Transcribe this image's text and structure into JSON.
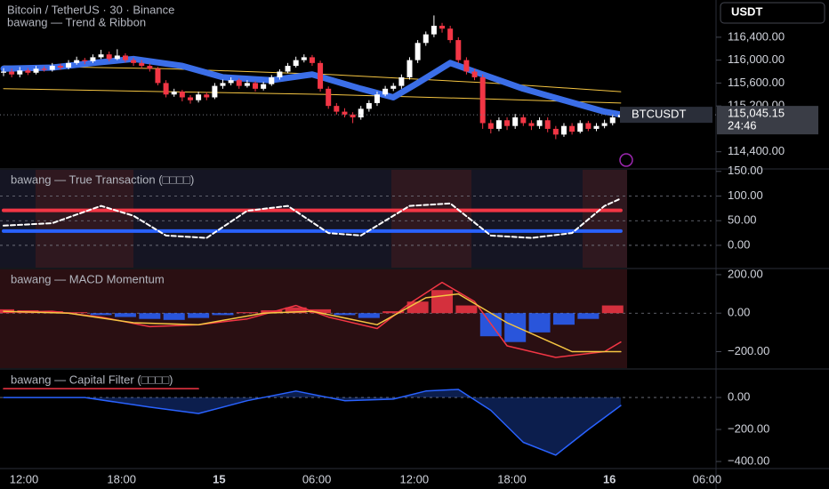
{
  "header": {
    "title": "Bitcoin / TetherUS · 30 · Binance",
    "indicator": "bawang — Trend & Ribbon"
  },
  "currency": "USDT",
  "time_axis": {
    "labels": [
      "12:00",
      "18:00",
      "15",
      "06:00",
      "12:00",
      "18:00",
      "16",
      "06:00"
    ]
  },
  "price_pane": {
    "ylim": [
      114100,
      117050
    ],
    "yticks": [
      {
        "value": 116400,
        "label": "116,400.00"
      },
      {
        "value": 116000,
        "label": "116,000.00"
      },
      {
        "value": 115600,
        "label": "115,600.00"
      },
      {
        "value": 115200,
        "label": "115,200.00"
      },
      {
        "value": 114400,
        "label": "114,400.00"
      }
    ],
    "up_color": "#ffffff",
    "down_color": "#f23645",
    "candles": {
      "open": [
        115780,
        115800,
        115750,
        115820,
        115780,
        115850,
        115830,
        115900,
        115870,
        115950,
        116000,
        115980,
        116050,
        116100,
        116020,
        116080,
        116000,
        115950,
        115900,
        115850,
        115600,
        115400,
        115450,
        115350,
        115300,
        115400,
        115350,
        115550,
        115600,
        115650,
        115550,
        115600,
        115500,
        115580,
        115700,
        115800,
        115900,
        116000,
        116050,
        115950,
        115500,
        115200,
        115100,
        115050,
        115000,
        115150,
        115250,
        115400,
        115500,
        115550,
        115700,
        116000,
        116300,
        116450,
        116600,
        116550,
        116350,
        116000,
        115800,
        115700,
        114900,
        114800,
        114950,
        114850,
        115000,
        114900,
        114850,
        114950,
        114800,
        114700,
        114850,
        114750,
        114900,
        114800,
        114850,
        114900,
        115000
      ],
      "high": [
        115860,
        115850,
        115880,
        115860,
        115900,
        115890,
        115950,
        115940,
        116000,
        116060,
        116040,
        116100,
        116180,
        116150,
        116190,
        116120,
        116040,
        116000,
        115940,
        115880,
        115650,
        115500,
        115480,
        115390,
        115450,
        115440,
        115600,
        115660,
        115700,
        115680,
        115650,
        115630,
        115620,
        115740,
        115840,
        115950,
        116060,
        116100,
        116090,
        115990,
        115540,
        115250,
        115160,
        115090,
        115200,
        115300,
        115450,
        115550,
        115600,
        115750,
        116050,
        116350,
        116500,
        116780,
        116650,
        116600,
        116400,
        116050,
        115850,
        115750,
        114960,
        115000,
        115000,
        115060,
        115050,
        114950,
        115000,
        115000,
        114850,
        114900,
        114900,
        114950,
        114940,
        114900,
        114960,
        115050,
        115120
      ],
      "low": [
        115720,
        115700,
        115700,
        115740,
        115750,
        115800,
        115800,
        115830,
        115840,
        115920,
        115930,
        115950,
        116020,
        115980,
        116000,
        115960,
        115900,
        115850,
        115800,
        115560,
        115350,
        115360,
        115280,
        115240,
        115260,
        115300,
        115320,
        115500,
        115560,
        115500,
        115520,
        115450,
        115470,
        115550,
        115660,
        115770,
        115870,
        115960,
        115900,
        115450,
        115150,
        115050,
        115000,
        114900,
        114960,
        115100,
        115200,
        115370,
        115460,
        115500,
        115660,
        115950,
        116250,
        116400,
        116480,
        116300,
        115950,
        115750,
        115650,
        114800,
        114720,
        114760,
        114780,
        114800,
        114850,
        114780,
        114800,
        114740,
        114620,
        114660,
        114700,
        114720,
        114760,
        114760,
        114810,
        114860,
        114980
      ],
      "close": [
        115800,
        115750,
        115820,
        115780,
        115850,
        115830,
        115900,
        115870,
        115950,
        116000,
        115980,
        116050,
        116100,
        116020,
        116080,
        116000,
        115950,
        115900,
        115850,
        115600,
        115400,
        115450,
        115350,
        115300,
        115400,
        115350,
        115550,
        115600,
        115650,
        115550,
        115600,
        115500,
        115580,
        115700,
        115800,
        115900,
        116000,
        116050,
        115950,
        115500,
        115200,
        115100,
        115050,
        115000,
        115150,
        115250,
        115400,
        115500,
        115550,
        115700,
        116000,
        116300,
        116450,
        116600,
        116550,
        116350,
        116000,
        115800,
        115700,
        114900,
        114800,
        114950,
        114850,
        115000,
        114900,
        114850,
        114950,
        114800,
        114700,
        114850,
        114750,
        114900,
        114800,
        114850,
        114900,
        115000,
        115045.15
      ]
    },
    "lines": [
      {
        "color": "#f5c542",
        "width": 1,
        "x": [
          0,
          20,
          40,
          60,
          76
        ],
        "values": [
          115900,
          115850,
          115750,
          115600,
          115450
        ]
      },
      {
        "color": "#f5c542",
        "width": 1,
        "x": [
          0,
          20,
          40,
          60,
          76
        ],
        "values": [
          115500,
          115450,
          115400,
          115320,
          115250
        ]
      },
      {
        "color": "#3b6ee8",
        "width": 7,
        "x": [
          0,
          6,
          11,
          16,
          22,
          27,
          33,
          38,
          44,
          48,
          51,
          55,
          58,
          64,
          69,
          74,
          76
        ],
        "values": [
          115850,
          115870,
          115950,
          116020,
          115900,
          115700,
          115650,
          115750,
          115500,
          115350,
          115600,
          115950,
          115800,
          115500,
          115300,
          115100,
          115050
        ]
      }
    ],
    "last_price": {
      "symbol": "BTCUSDT",
      "value": 115045.15,
      "label": "115,045.15",
      "countdown": "24:46"
    }
  },
  "panes": [
    {
      "title": "bawang — True Transaction (□□□□)",
      "ylim": [
        -47,
        155
      ],
      "yticks": [
        {
          "value": 150,
          "label": "150.00"
        },
        {
          "value": 100,
          "label": "100.00"
        },
        {
          "value": 50,
          "label": "50.00"
        },
        {
          "value": 0,
          "label": "0.00"
        }
      ],
      "guides": [
        100,
        50,
        0
      ],
      "lines": [
        {
          "color": "#f23645",
          "width": 4,
          "x": [
            0,
            76
          ],
          "values": [
            71,
            71
          ]
        },
        {
          "color": "#2962ff",
          "width": 4,
          "x": [
            0,
            76
          ],
          "values": [
            29,
            29
          ]
        },
        {
          "color": "#ffffff",
          "width": 2,
          "dash": true,
          "x": [
            0,
            6,
            12,
            16,
            20,
            25,
            30,
            35,
            40,
            44,
            50,
            55,
            60,
            65,
            70,
            74,
            76
          ],
          "values": [
            40,
            45,
            80,
            60,
            20,
            15,
            70,
            80,
            25,
            20,
            80,
            85,
            20,
            15,
            25,
            80,
            95
          ]
        }
      ]
    },
    {
      "title": "bawang — MACD Momentum",
      "ylim": [
        -290,
        232
      ],
      "yticks": [
        {
          "value": 200,
          "label": "200.00"
        },
        {
          "value": 0,
          "label": "0.00"
        },
        {
          "value": -200,
          "label": "−200.00"
        }
      ],
      "guides": [
        0
      ],
      "histogram": {
        "up_color": "#f23645",
        "down_color": "#2962ff",
        "x": [
          0,
          3,
          6,
          9,
          12,
          15,
          18,
          21,
          24,
          27,
          30,
          33,
          36,
          39,
          42,
          45,
          48,
          51,
          54,
          57,
          60,
          63,
          66,
          69,
          72,
          75
        ],
        "values": [
          20,
          15,
          10,
          5,
          -10,
          -20,
          -30,
          -35,
          -25,
          -10,
          5,
          15,
          30,
          20,
          -10,
          -25,
          10,
          60,
          120,
          40,
          -120,
          -150,
          -100,
          -60,
          -30,
          40
        ]
      },
      "lines": [
        {
          "color": "#f23645",
          "width": 1.5,
          "x": [
            0,
            6,
            12,
            18,
            24,
            30,
            36,
            40,
            46,
            50,
            54,
            58,
            62,
            68,
            74,
            76
          ],
          "values": [
            5,
            10,
            -20,
            -70,
            -60,
            -30,
            40,
            -20,
            -80,
            50,
            160,
            60,
            -170,
            -230,
            -200,
            -150
          ]
        },
        {
          "color": "#f5c542",
          "width": 1.5,
          "x": [
            0,
            8,
            16,
            24,
            32,
            38,
            46,
            52,
            56,
            62,
            70,
            76
          ],
          "values": [
            10,
            0,
            -50,
            -60,
            0,
            10,
            -60,
            80,
            100,
            -50,
            -200,
            -200
          ]
        }
      ]
    },
    {
      "title": "bawang — Capital Filter (□□□□)",
      "ylim": [
        -444,
        178
      ],
      "yticks": [
        {
          "value": 0,
          "label": "0.00"
        },
        {
          "value": -200,
          "label": "−200.00"
        },
        {
          "value": -400,
          "label": "−400.00"
        }
      ],
      "guides": [
        0
      ],
      "lines": [
        {
          "color": "#f23645",
          "width": 1.5,
          "x": [
            0,
            24
          ],
          "values": [
            55,
            55
          ]
        },
        {
          "color": "#2962ff",
          "width": 1.5,
          "area": true,
          "x": [
            0,
            10,
            18,
            24,
            30,
            36,
            42,
            48,
            52,
            56,
            60,
            64,
            68,
            72,
            76
          ],
          "values": [
            0,
            0,
            -60,
            -100,
            -20,
            40,
            -20,
            -10,
            40,
            50,
            -80,
            -280,
            -360,
            -200,
            -50
          ]
        }
      ]
    }
  ]
}
